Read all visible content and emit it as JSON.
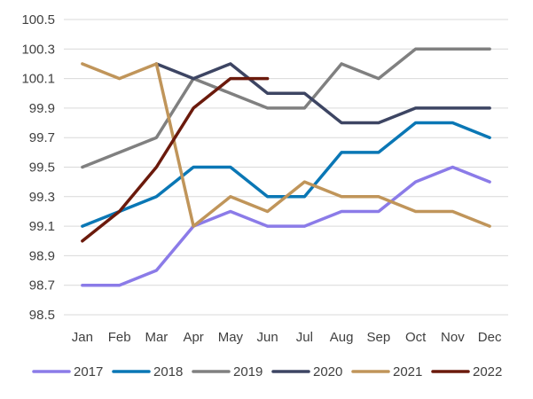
{
  "chart_data": {
    "type": "line",
    "title": "",
    "xlabel": "",
    "ylabel": "",
    "categories": [
      "Jan",
      "Feb",
      "Mar",
      "Apr",
      "May",
      "Jun",
      "Jul",
      "Aug",
      "Sep",
      "Oct",
      "Nov",
      "Dec"
    ],
    "ylim": [
      98.5,
      100.5
    ],
    "yticks": [
      "98.5",
      "98.7",
      "98.9",
      "99.1",
      "99.3",
      "99.5",
      "99.7",
      "99.9",
      "100.1",
      "100.3",
      "100.5"
    ],
    "grid": "horizontal",
    "legend_position": "bottom",
    "series": [
      {
        "name": "2017",
        "color": "#8B7BE8",
        "values": [
          98.7,
          98.7,
          98.8,
          99.1,
          99.2,
          99.1,
          99.1,
          99.2,
          99.2,
          99.4,
          99.5,
          99.4
        ]
      },
      {
        "name": "2018",
        "color": "#0A77B5",
        "values": [
          99.1,
          99.2,
          99.3,
          99.5,
          99.5,
          99.3,
          99.3,
          99.6,
          99.6,
          99.8,
          99.8,
          99.7
        ]
      },
      {
        "name": "2019",
        "color": "#808080",
        "values": [
          99.5,
          99.6,
          99.7,
          100.1,
          100.0,
          99.9,
          99.9,
          100.2,
          100.1,
          100.3,
          100.3,
          100.3
        ]
      },
      {
        "name": "2020",
        "color": "#3D4563",
        "values": [
          null,
          null,
          100.2,
          100.1,
          100.2,
          100.0,
          100.0,
          99.8,
          99.8,
          99.9,
          99.9,
          99.9
        ]
      },
      {
        "name": "2021",
        "color": "#C0955A",
        "values": [
          100.2,
          100.1,
          100.2,
          99.1,
          99.3,
          99.2,
          99.4,
          99.3,
          99.3,
          99.2,
          99.2,
          99.1
        ]
      },
      {
        "name": "2022",
        "color": "#6B1A0C",
        "values": [
          99.0,
          99.2,
          99.5,
          99.9,
          100.1,
          100.1,
          null,
          null,
          null,
          null,
          null,
          null
        ]
      }
    ]
  }
}
